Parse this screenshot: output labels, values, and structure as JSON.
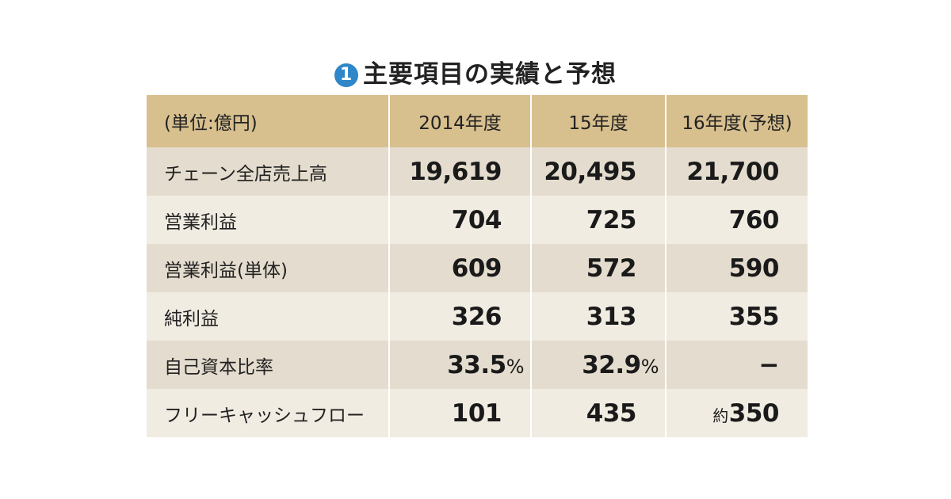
{
  "title": {
    "number": "1",
    "text": "主要項目の実績と予想"
  },
  "table": {
    "headers": [
      "(単位:億円)",
      "2014年度",
      "15年度",
      "16年度(予想)"
    ],
    "rows": [
      {
        "label": "チェーン全店売上高",
        "values": [
          "19,619",
          "20,495",
          "21,700"
        ]
      },
      {
        "label": "営業利益",
        "values": [
          "704",
          "725",
          "760"
        ]
      },
      {
        "label": "営業利益(単体)",
        "values": [
          "609",
          "572",
          "590"
        ]
      },
      {
        "label": "純利益",
        "values": [
          "326",
          "313",
          "355"
        ]
      },
      {
        "label": "自己資本比率",
        "values": [
          "33.5",
          "32.9",
          "−"
        ],
        "suffix": "%"
      },
      {
        "label": "フリーキャッシュフロー",
        "values": [
          "101",
          "435",
          "350"
        ],
        "last_prefix": "約"
      }
    ]
  },
  "colors": {
    "header_bg": "#d7bf8e",
    "row_dark": "#e4dcce",
    "row_light": "#f1ece2",
    "badge": "#2f86c8"
  }
}
